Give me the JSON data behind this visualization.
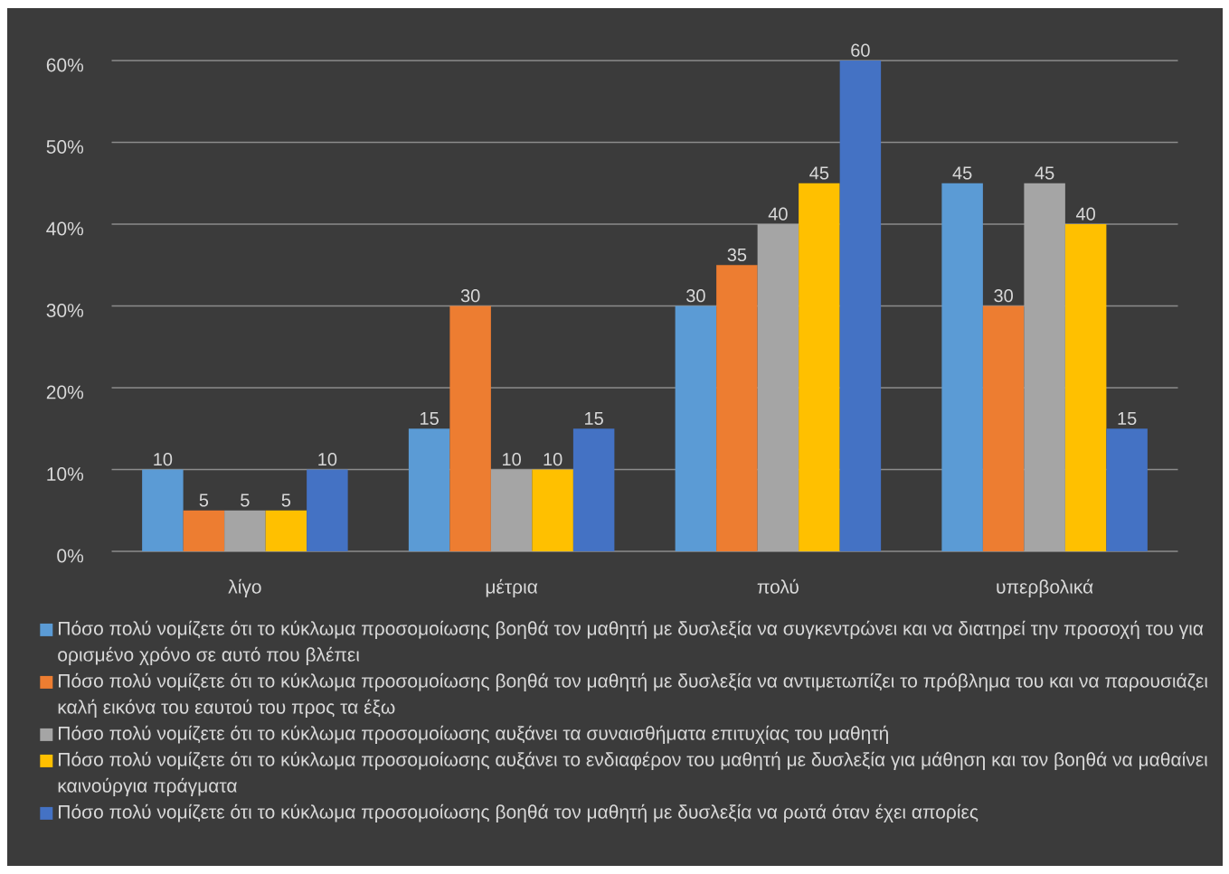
{
  "chart_data": {
    "type": "bar",
    "categories": [
      "λίγο",
      "μέτρια",
      "πολύ",
      "υπερβολικά"
    ],
    "series": [
      {
        "name": "Πόσο πολύ νομίζετε ότι το κύκλωμα προσομοίωσης βοηθά τον μαθητή με δυσλεξία να συγκεντρώνει και να διατηρεί την προσοχή του για ορισμένο χρόνο σε αυτό που βλέπει",
        "color": "#5b9bd5",
        "values": [
          10,
          15,
          30,
          45
        ]
      },
      {
        "name": "Πόσο πολύ νομίζετε ότι το κύκλωμα προσομοίωσης βοηθά τον μαθητή με δυσλεξία να αντιμετωπίζει το πρόβλημα του και να παρουσιάζει καλή εικόνα του εαυτού του προς τα έξω",
        "color": "#ed7d31",
        "values": [
          5,
          30,
          35,
          30
        ]
      },
      {
        "name": "Πόσο πολύ νομίζετε ότι το κύκλωμα προσομοίωσης αυξάνει τα συναισθήματα επιτυχίας του μαθητή",
        "color": "#a5a5a5",
        "values": [
          5,
          10,
          40,
          45
        ]
      },
      {
        "name": "Πόσο πολύ νομίζετε ότι το κύκλωμα προσομοίωσης αυξάνει το ενδιαφέρον του μαθητή με δυσλεξία για μάθηση και τον βοηθά να μαθαίνει καινούργια πράγματα",
        "color": "#ffc000",
        "values": [
          5,
          10,
          45,
          40
        ]
      },
      {
        "name": "Πόσο πολύ νομίζετε ότι το κύκλωμα προσομοίωσης βοηθά τον μαθητή με δυσλεξία να ρωτά όταν έχει απορίες",
        "color": "#4472c4",
        "values": [
          10,
          15,
          60,
          15
        ]
      }
    ],
    "ylim": [
      0,
      60
    ],
    "yticks": [
      {
        "value": 0,
        "label": "0%"
      },
      {
        "value": 10,
        "label": "10%"
      },
      {
        "value": 20,
        "label": "20%"
      },
      {
        "value": 30,
        "label": "30%"
      },
      {
        "value": 40,
        "label": "40%"
      },
      {
        "value": 50,
        "label": "50%"
      },
      {
        "value": 60,
        "label": "60%"
      }
    ],
    "grid": "y",
    "legend": "bottom",
    "data_labels": true
  }
}
